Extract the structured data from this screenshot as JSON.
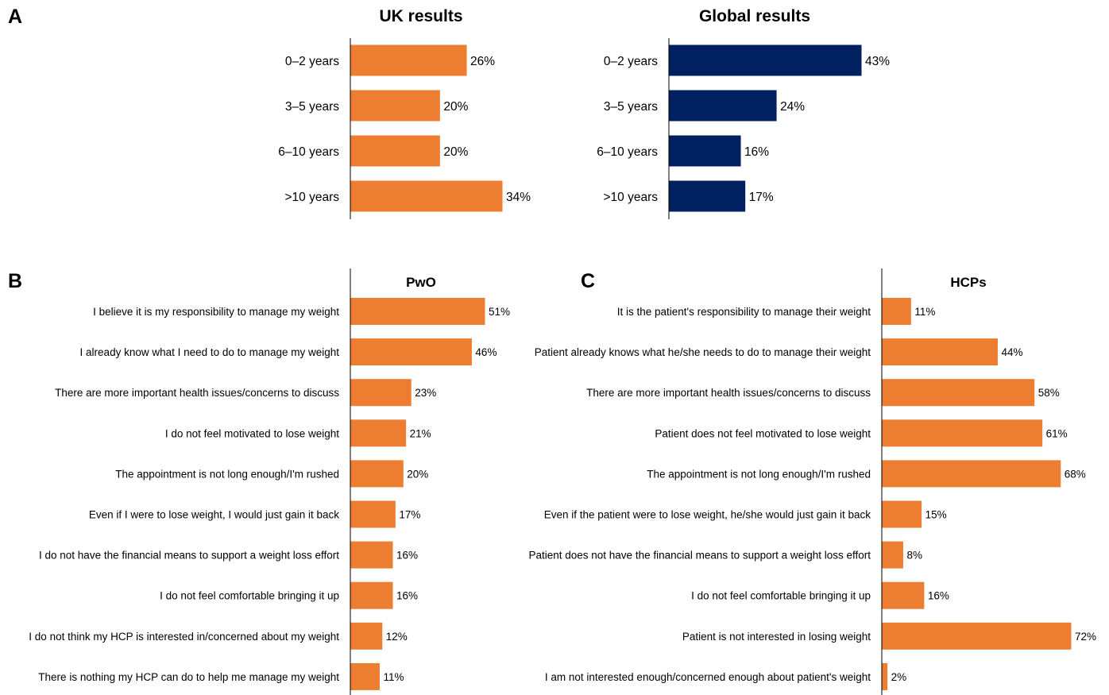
{
  "panels": [
    {
      "label": "A"
    },
    {
      "label": "B"
    },
    {
      "label": "C"
    }
  ],
  "chart_data": [
    {
      "type": "bar",
      "orientation": "horizontal",
      "title": "UK results",
      "categories": [
        "0–2 years",
        "3–5 years",
        "6–10 years",
        ">10 years"
      ],
      "values": [
        26,
        20,
        20,
        34
      ],
      "value_labels": [
        "26%",
        "20%",
        "20%",
        "34%"
      ],
      "color": "#ED7D31",
      "xlim": [
        0,
        45
      ]
    },
    {
      "type": "bar",
      "orientation": "horizontal",
      "title": "Global results",
      "categories": [
        "0–2 years",
        "3–5 years",
        "6–10 years",
        ">10 years"
      ],
      "values": [
        43,
        24,
        16,
        17
      ],
      "value_labels": [
        "43%",
        "24%",
        "16%",
        "17%"
      ],
      "color": "#002060",
      "xlim": [
        0,
        45
      ]
    },
    {
      "type": "bar",
      "orientation": "horizontal",
      "title": "PwO",
      "categories": [
        "I believe it is my responsibility to manage my weight",
        "I already know what I need to do to manage my weight",
        "There are more important health issues/concerns to discuss",
        "I do not feel motivated to lose weight",
        "The appointment is not long enough/I'm rushed",
        "Even if I were to lose weight, I would just gain it back",
        "I do not have the financial means to support a weight loss effort",
        "I do not feel comfortable bringing it up",
        "I do not think my HCP is interested in/concerned about my weight",
        "There is nothing my HCP can do to help me manage my weight"
      ],
      "values": [
        51,
        46,
        23,
        21,
        20,
        17,
        16,
        16,
        12,
        11
      ],
      "value_labels": [
        "51%",
        "46%",
        "23%",
        "21%",
        "20%",
        "17%",
        "16%",
        "16%",
        "12%",
        "11%"
      ],
      "color": "#ED7D31",
      "xlim": [
        0,
        72
      ]
    },
    {
      "type": "bar",
      "orientation": "horizontal",
      "title": "HCPs",
      "categories": [
        "It is the patient's responsibility to manage their weight",
        "Patient already knows what he/she needs to do to manage their weight",
        "There are more important health issues/concerns to discuss",
        "Patient does not feel motivated to lose weight",
        "The appointment is not long enough/I'm rushed",
        "Even if the patient were to lose weight, he/she would just gain it back",
        "Patient does not have the financial means to support a weight loss effort",
        "I do not feel comfortable bringing it up",
        "Patient is not interested in losing weight",
        "I am not interested enough/concerned enough about patient's weight"
      ],
      "values": [
        11,
        44,
        58,
        61,
        68,
        15,
        8,
        16,
        72,
        2
      ],
      "value_labels": [
        "11%",
        "44%",
        "58%",
        "61%",
        "68%",
        "15%",
        "8%",
        "16%",
        "72%",
        "2%"
      ],
      "color": "#ED7D31",
      "xlim": [
        0,
        72
      ]
    }
  ]
}
